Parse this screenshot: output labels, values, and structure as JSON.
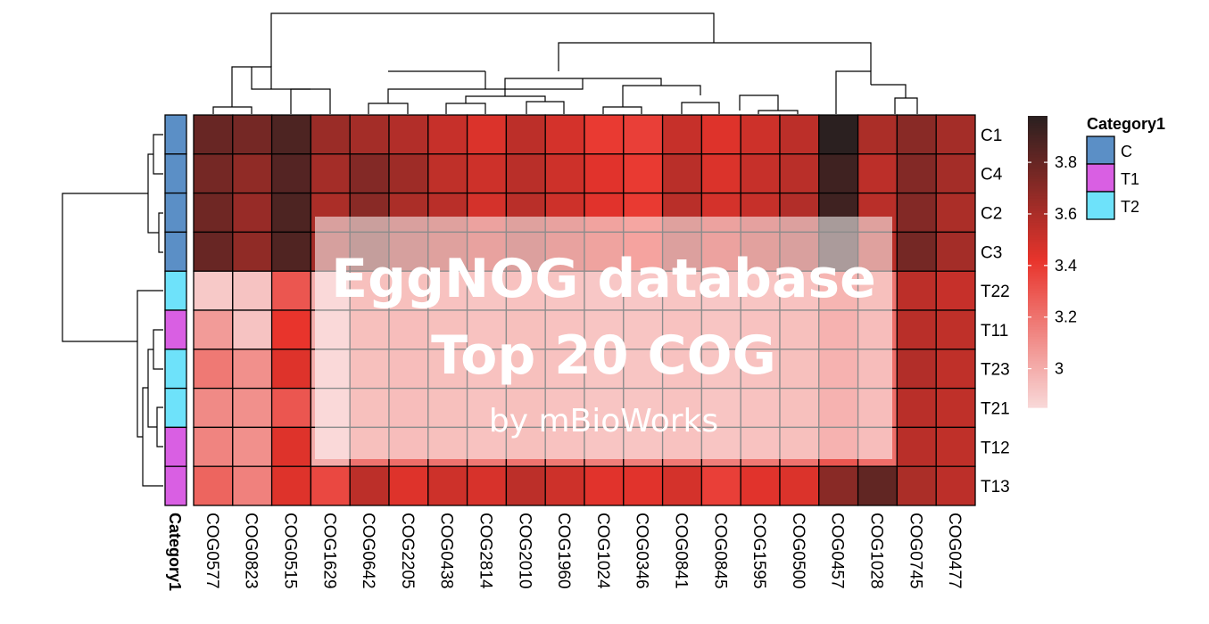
{
  "chart_data": {
    "type": "heatmap",
    "columns": [
      "COG0577",
      "COG0823",
      "COG0515",
      "COG1629",
      "COG0642",
      "COG2205",
      "COG0438",
      "COG2814",
      "COG2010",
      "COG1960",
      "COG1024",
      "COG0346",
      "COG0841",
      "COG0845",
      "COG1595",
      "COG0500",
      "COG0457",
      "COG1028",
      "COG0745",
      "COG0477"
    ],
    "rows": [
      "C1",
      "C4",
      "C2",
      "C3",
      "T22",
      "T11",
      "T23",
      "T21",
      "T12",
      "T13"
    ],
    "row_categories": [
      "C",
      "C",
      "C",
      "C",
      "T2",
      "T1",
      "T2",
      "T2",
      "T1",
      "T1"
    ],
    "values": [
      [
        3.8,
        3.76,
        3.88,
        3.65,
        3.62,
        3.58,
        3.52,
        3.46,
        3.55,
        3.48,
        3.4,
        3.38,
        3.52,
        3.45,
        3.5,
        3.55,
        3.98,
        3.6,
        3.7,
        3.62
      ],
      [
        3.76,
        3.68,
        3.86,
        3.62,
        3.72,
        3.64,
        3.54,
        3.5,
        3.56,
        3.5,
        3.44,
        3.4,
        3.56,
        3.46,
        3.52,
        3.56,
        3.92,
        3.55,
        3.72,
        3.62
      ],
      [
        3.78,
        3.66,
        3.88,
        3.6,
        3.7,
        3.6,
        3.56,
        3.48,
        3.56,
        3.5,
        3.44,
        3.4,
        3.56,
        3.48,
        3.52,
        3.58,
        3.92,
        3.56,
        3.72,
        3.6
      ],
      [
        3.8,
        3.68,
        3.87,
        3.62,
        3.74,
        3.62,
        3.56,
        3.5,
        3.58,
        3.5,
        3.46,
        3.42,
        3.58,
        3.48,
        3.54,
        3.6,
        3.9,
        3.56,
        3.76,
        3.62
      ],
      [
        2.9,
        2.92,
        3.3,
        3.0,
        3.2,
        3.2,
        3.18,
        3.16,
        3.18,
        3.16,
        3.14,
        3.14,
        3.16,
        3.14,
        3.16,
        3.18,
        3.28,
        3.2,
        3.55,
        3.52
      ],
      [
        3.06,
        2.92,
        3.42,
        3.0,
        3.2,
        3.22,
        3.2,
        3.18,
        3.2,
        3.18,
        3.16,
        3.16,
        3.18,
        3.16,
        3.18,
        3.2,
        3.3,
        3.22,
        3.56,
        3.54
      ],
      [
        3.18,
        3.1,
        3.45,
        3.0,
        3.2,
        3.22,
        3.2,
        3.18,
        3.2,
        3.18,
        3.16,
        3.16,
        3.18,
        3.16,
        3.18,
        3.2,
        3.3,
        3.22,
        3.58,
        3.54
      ],
      [
        3.12,
        3.1,
        3.3,
        3.0,
        3.2,
        3.22,
        3.2,
        3.18,
        3.2,
        3.18,
        3.16,
        3.16,
        3.18,
        3.16,
        3.18,
        3.2,
        3.3,
        3.22,
        3.56,
        3.54
      ],
      [
        3.14,
        3.1,
        3.45,
        3.0,
        3.2,
        3.22,
        3.2,
        3.18,
        3.2,
        3.18,
        3.16,
        3.16,
        3.18,
        3.16,
        3.18,
        3.2,
        3.3,
        3.22,
        3.56,
        3.54
      ],
      [
        3.25,
        3.15,
        3.45,
        3.35,
        3.55,
        3.45,
        3.5,
        3.47,
        3.55,
        3.5,
        3.44,
        3.44,
        3.48,
        3.38,
        3.44,
        3.46,
        3.7,
        3.82,
        3.6,
        3.55
      ]
    ],
    "color_scale": {
      "min": 2.85,
      "max": 3.98,
      "colors": [
        "#f8d7d7",
        "#e8342c",
        "#2b2020"
      ],
      "mid": 3.42
    },
    "colorbar_ticks": [
      3,
      3.2,
      3.4,
      3.6,
      3.8
    ],
    "annotation": {
      "title": "Category1",
      "levels": [
        {
          "name": "C",
          "color": "#5b8fc6"
        },
        {
          "name": "T1",
          "color": "#d95fe3"
        },
        {
          "name": "T2",
          "color": "#6ee2fa"
        }
      ]
    },
    "annotation_axis_label": "Category1"
  },
  "overlay": {
    "title_line1": "EggNOG database",
    "title_line2": "Top 20 COG",
    "subtitle": "by mBioWorks"
  }
}
